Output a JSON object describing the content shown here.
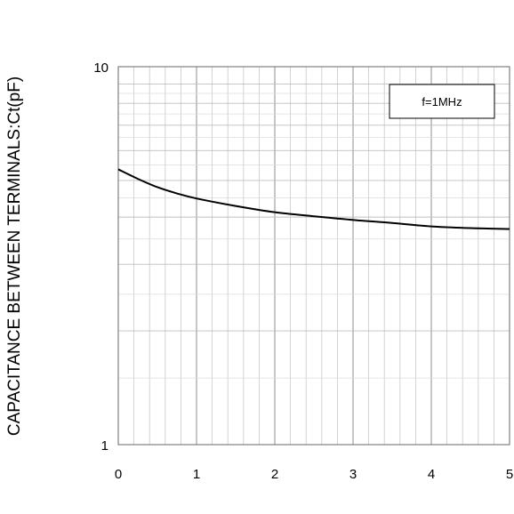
{
  "chart_data": {
    "type": "line",
    "title": "",
    "xlabel": "",
    "ylabel": "CAPACITANCE BETWEEN TERMINALS:Ct(pF)",
    "x_scale": "linear",
    "y_scale": "log",
    "xlim": [
      0,
      5
    ],
    "ylim": [
      1,
      10
    ],
    "x_ticks": [
      "0",
      "1",
      "2",
      "3",
      "4",
      "5"
    ],
    "y_ticks": [
      "1",
      "10"
    ],
    "grid": true,
    "legend_box": "f=1MHz",
    "legend_position": "top-right",
    "series": [
      {
        "x": [
          0,
          0.25,
          0.5,
          0.75,
          1.0,
          1.5,
          2.0,
          2.5,
          3.0,
          3.5,
          4.0,
          4.5,
          5.0
        ],
        "y": [
          5.35,
          5.05,
          4.8,
          4.62,
          4.48,
          4.28,
          4.12,
          4.02,
          3.93,
          3.86,
          3.78,
          3.74,
          3.72
        ]
      }
    ],
    "colors": {
      "line": "#000000",
      "grid": "#bfbfbf",
      "axis": "#808080"
    }
  }
}
